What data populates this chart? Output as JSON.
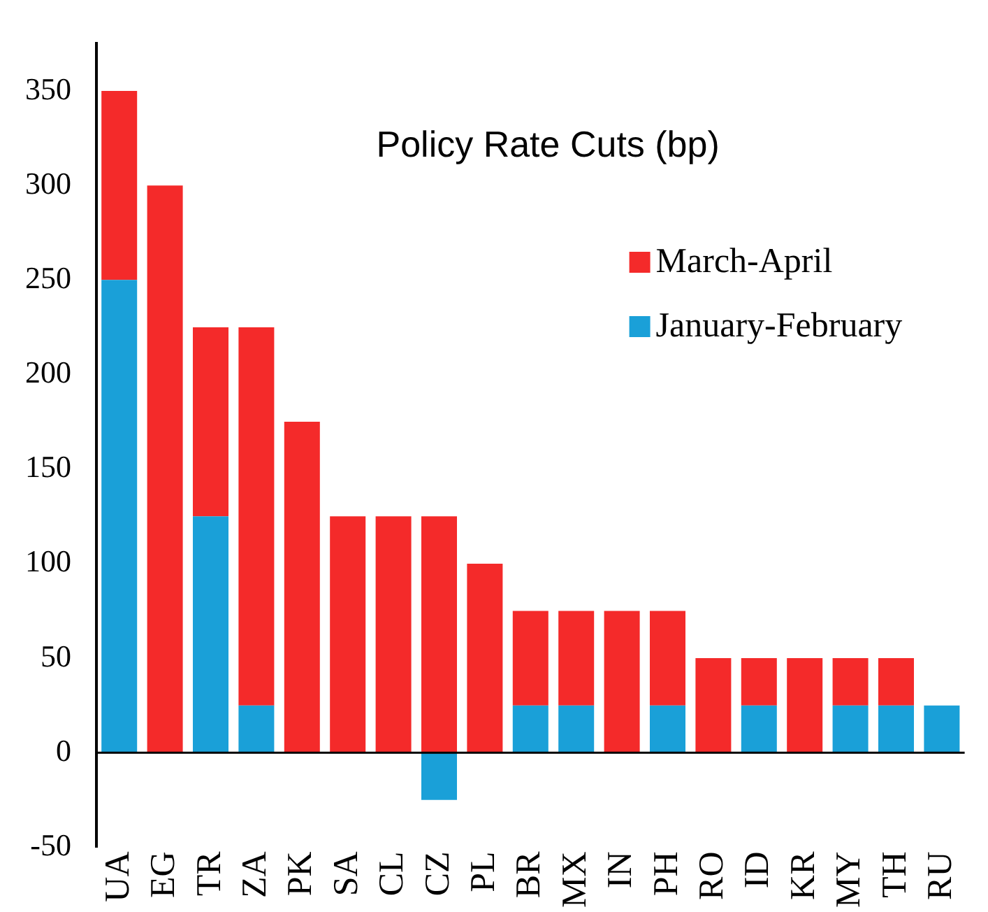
{
  "chart_data": {
    "type": "bar",
    "title": "Policy Rate Cuts (bp)",
    "stacked": true,
    "legend": "top right",
    "grid": false,
    "categories": [
      "UA",
      "EG",
      "TR",
      "ZA",
      "PK",
      "SA",
      "CL",
      "CZ",
      "PL",
      "BR",
      "MX",
      "IN",
      "PH",
      "RO",
      "ID",
      "KR",
      "MY",
      "TH",
      "RU"
    ],
    "series": [
      {
        "name": "January-February",
        "color": "#1aa0d8",
        "values": [
          250,
          0,
          125,
          25,
          0,
          0,
          0,
          -25,
          0,
          25,
          25,
          0,
          25,
          0,
          25,
          0,
          25,
          25,
          25
        ]
      },
      {
        "name": "March-April",
        "color": "#f42a2a",
        "values": [
          100,
          300,
          100,
          200,
          175,
          125,
          125,
          125,
          100,
          50,
          50,
          75,
          50,
          50,
          25,
          50,
          25,
          25,
          0
        ]
      }
    ],
    "ref_lines": [
      {
        "axis": "y",
        "value": 0,
        "color": "#000000"
      }
    ],
    "ylim": [
      -50,
      375
    ],
    "yticks": [
      -50,
      0,
      50,
      100,
      150,
      200,
      250,
      300,
      350
    ]
  }
}
